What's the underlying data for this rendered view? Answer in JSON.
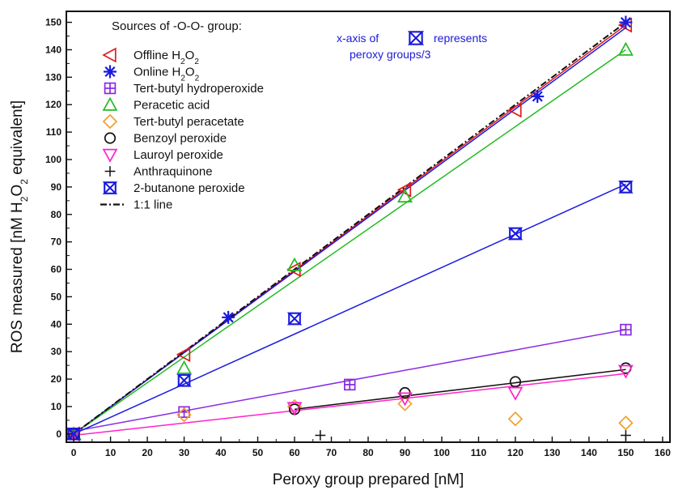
{
  "chart_data": {
    "type": "scatter",
    "xlabel": "Peroxy group prepared [nM]",
    "ylabel_parts": [
      "ROS measured [nM H",
      "2",
      "O",
      "2",
      " equivalent]"
    ],
    "xlim": [
      -2,
      162
    ],
    "ylim": [
      -3,
      154
    ],
    "xticks": [
      0,
      10,
      20,
      30,
      40,
      50,
      60,
      70,
      80,
      90,
      100,
      110,
      120,
      130,
      140,
      150,
      160
    ],
    "yticks": [
      0,
      10,
      20,
      30,
      40,
      50,
      60,
      70,
      80,
      90,
      100,
      110,
      120,
      130,
      140,
      150
    ],
    "grid": false,
    "legend": {
      "title": "Sources of -O-O- group:",
      "position": "top-left"
    },
    "annotation": {
      "line1_before": "x-axis of",
      "line1_after": "represents",
      "line2": "peroxy groups/3",
      "color": "#1a1ad6"
    },
    "series": [
      {
        "name_parts": [
          "Offline H",
          "2",
          "O",
          "2"
        ],
        "marker": "triangle-left",
        "color": "#e01a1a",
        "points": [
          [
            0,
            0
          ],
          [
            30,
            29
          ],
          [
            60,
            60
          ],
          [
            90,
            89
          ],
          [
            120,
            118
          ],
          [
            150,
            149
          ]
        ],
        "fit": [
          [
            0,
            0
          ],
          [
            150,
            149
          ]
        ]
      },
      {
        "name_parts": [
          "Online H",
          "2",
          "O",
          "2"
        ],
        "marker": "asterisk",
        "color": "#1a1ae0",
        "points": [
          [
            0,
            0
          ],
          [
            42,
            42.5
          ],
          [
            126,
            123
          ],
          [
            150,
            150
          ]
        ],
        "fit": [
          [
            0,
            0
          ],
          [
            150,
            148
          ]
        ]
      },
      {
        "name": "Tert-butyl hydroperoxide",
        "marker": "square-plus",
        "color": "#8a2be2",
        "points": [
          [
            0,
            0
          ],
          [
            30,
            8
          ],
          [
            75,
            18
          ],
          [
            150,
            38
          ]
        ],
        "fit": [
          [
            0,
            1
          ],
          [
            150,
            38
          ]
        ]
      },
      {
        "name": "Peracetic acid",
        "marker": "triangle-up",
        "color": "#22bb22",
        "points": [
          [
            0,
            0
          ],
          [
            30,
            24
          ],
          [
            60,
            61.5
          ],
          [
            90,
            86.5
          ],
          [
            150,
            140
          ]
        ],
        "fit": [
          [
            0,
            0
          ],
          [
            150,
            140
          ]
        ]
      },
      {
        "name": "Tert-butyl peracetate",
        "marker": "diamond",
        "color": "#f0a030",
        "points": [
          [
            0,
            0
          ],
          [
            30,
            7
          ],
          [
            60,
            10
          ],
          [
            90,
            11
          ],
          [
            120,
            5.5
          ],
          [
            150,
            4
          ]
        ],
        "fit": null
      },
      {
        "name": "Benzoyl peroxide",
        "marker": "circle",
        "color": "#111111",
        "points": [
          [
            0,
            0
          ],
          [
            60,
            9
          ],
          [
            90,
            15
          ],
          [
            120,
            19
          ],
          [
            150,
            24
          ]
        ],
        "fit": [
          [
            60,
            9
          ],
          [
            150,
            23.5
          ]
        ]
      },
      {
        "name": "Lauroyl peroxide",
        "marker": "triangle-down",
        "color": "#ff22cc",
        "points": [
          [
            0,
            0
          ],
          [
            60,
            9.5
          ],
          [
            90,
            13
          ],
          [
            120,
            15
          ],
          [
            150,
            23
          ]
        ],
        "fit": [
          [
            0,
            -0.5
          ],
          [
            150,
            22
          ]
        ]
      },
      {
        "name": "Anthraquinone",
        "marker": "plus",
        "color": "#111111",
        "points": [
          [
            67,
            -0.5
          ],
          [
            150,
            -0.5
          ]
        ],
        "fit": null
      },
      {
        "name": "2-butanone peroxide",
        "marker": "hourglass",
        "color": "#1a1ae0",
        "points": [
          [
            0,
            0
          ],
          [
            30,
            19.5
          ],
          [
            60,
            42
          ],
          [
            120,
            73
          ],
          [
            150,
            90
          ]
        ],
        "fit": [
          [
            0,
            0
          ],
          [
            150,
            91
          ]
        ]
      }
    ],
    "ref_line": {
      "name": "1:1 line",
      "points": [
        [
          0,
          0
        ],
        [
          150,
          150
        ]
      ],
      "style": "dash-dot",
      "color": "#111111"
    }
  }
}
